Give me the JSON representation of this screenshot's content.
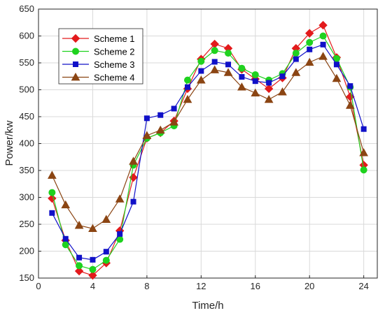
{
  "chart_data": {
    "type": "line",
    "title": "",
    "xlabel": "Time/h",
    "ylabel": "Power/kw",
    "xlim": [
      0,
      25
    ],
    "ylim": [
      150,
      650
    ],
    "xticks": [
      0,
      4,
      8,
      12,
      16,
      20,
      24
    ],
    "yticks": [
      150,
      200,
      250,
      300,
      350,
      400,
      450,
      500,
      550,
      600,
      650
    ],
    "grid": true,
    "legend_position": "top-left",
    "x": [
      1,
      2,
      3,
      4,
      5,
      6,
      7,
      8,
      9,
      10,
      11,
      12,
      13,
      14,
      15,
      16,
      17,
      18,
      19,
      20,
      21,
      22,
      23,
      24
    ],
    "series": [
      {
        "name": "Scheme 1",
        "color": "#e31a1c",
        "marker": "diamond",
        "values": [
          298,
          220,
          163,
          155,
          178,
          238,
          337,
          410,
          420,
          442,
          502,
          557,
          585,
          577,
          538,
          520,
          502,
          522,
          577,
          605,
          620,
          560,
          487,
          360
        ]
      },
      {
        "name": "Scheme 2",
        "color": "#1fd21f",
        "marker": "circle",
        "values": [
          309,
          212,
          173,
          166,
          183,
          222,
          360,
          410,
          420,
          433,
          518,
          553,
          573,
          568,
          540,
          528,
          518,
          530,
          568,
          588,
          600,
          558,
          505,
          351
        ]
      },
      {
        "name": "Scheme 3",
        "color": "#1010c8",
        "marker": "square",
        "values": [
          271,
          223,
          188,
          184,
          199,
          232,
          292,
          447,
          453,
          465,
          505,
          535,
          552,
          547,
          524,
          516,
          513,
          525,
          557,
          575,
          584,
          547,
          507,
          427
        ]
      },
      {
        "name": "Scheme 4",
        "color": "#8b4513",
        "marker": "triangle",
        "values": [
          341,
          286,
          248,
          242,
          259,
          297,
          367,
          415,
          425,
          440,
          482,
          518,
          537,
          532,
          505,
          494,
          482,
          496,
          532,
          551,
          562,
          521,
          471,
          383
        ]
      }
    ]
  }
}
